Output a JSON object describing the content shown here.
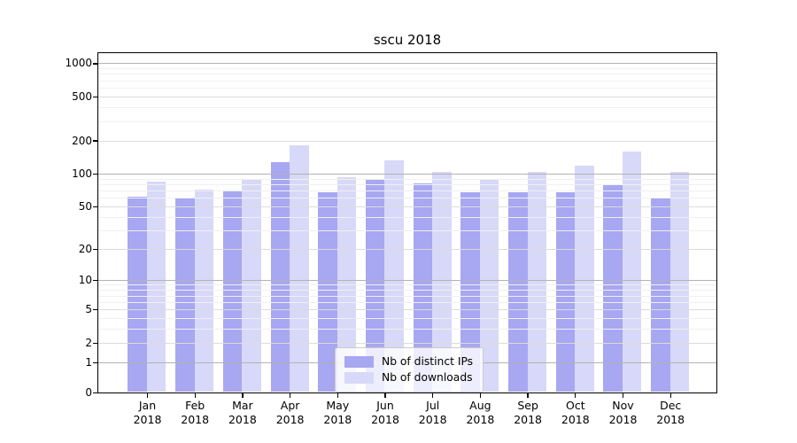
{
  "chart_data": {
    "type": "bar",
    "title": "sscu 2018",
    "xlabel": "",
    "ylabel": "",
    "categories": [
      "Jan",
      "Feb",
      "Mar",
      "Apr",
      "May",
      "Jun",
      "Jul",
      "Aug",
      "Sep",
      "Oct",
      "Nov",
      "Dec"
    ],
    "x_sublabel_year": "2018",
    "series": [
      {
        "name": "Nb of distinct IPs",
        "color": "#a7a7f2",
        "values": [
          62,
          59,
          70,
          127,
          67,
          89,
          82,
          67,
          68,
          68,
          80,
          60
        ]
      },
      {
        "name": "Nb of downloads",
        "color": "#d8d8f8",
        "values": [
          84,
          71,
          90,
          182,
          93,
          133,
          103,
          90,
          103,
          119,
          158,
          103
        ]
      }
    ],
    "y_ticks": [
      0,
      1,
      2,
      5,
      10,
      20,
      50,
      100,
      200,
      500,
      1000
    ],
    "y_gridlines_mid": [
      2,
      5,
      20,
      50,
      200,
      500
    ],
    "y_gridlines_major": [
      1,
      10,
      100,
      1000
    ],
    "y_gridlines_minor": [
      3,
      4,
      6,
      7,
      8,
      9,
      30,
      40,
      60,
      70,
      80,
      90,
      300,
      400,
      600,
      700,
      800,
      900
    ],
    "scale": "log10(value+1)",
    "ylim": [
      0,
      1250
    ],
    "grid": true,
    "legend_position": "inside-bottom-center",
    "grid_color_major": "#b3b3b3",
    "grid_color_mid": "#dcdcdc",
    "grid_color_minor": "#f0f0f0"
  }
}
